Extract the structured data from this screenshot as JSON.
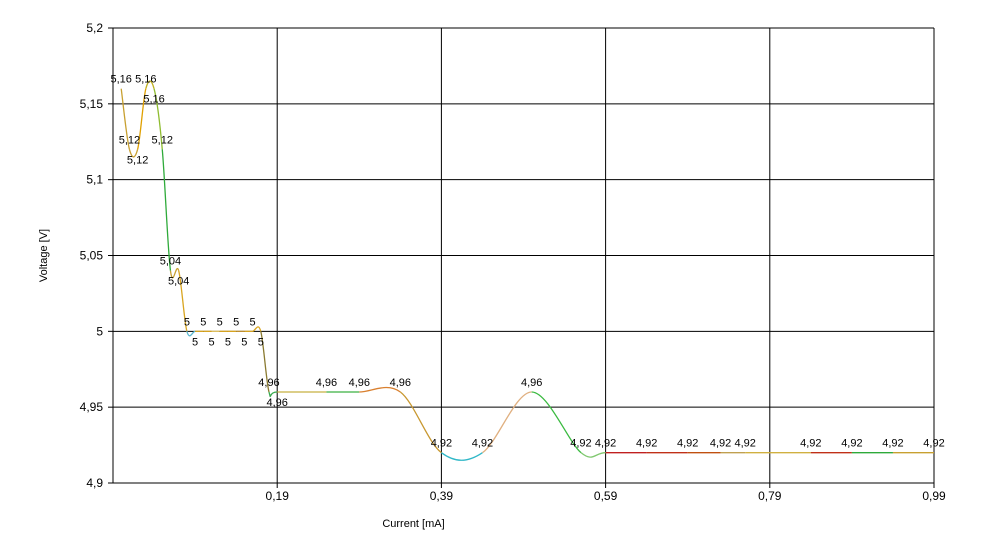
{
  "chart_data": {
    "type": "line",
    "xlabel": "Current [mA]",
    "ylabel": "Voltage [V]",
    "xlim": [
      -0.01,
      0.99
    ],
    "ylim": [
      4.9,
      5.2
    ],
    "x_ticks": [
      "0,19",
      "0,39",
      "0,59",
      "0,79",
      "0,99"
    ],
    "y_ticks": [
      "4,9",
      "4,95",
      "5",
      "5,05",
      "5,1",
      "5,15",
      "5,2"
    ],
    "grid": true,
    "points": [
      {
        "x": 0.0,
        "y": 5.16,
        "label": "5,16",
        "color": "#d9a520"
      },
      {
        "x": 0.01,
        "y": 5.12,
        "label": "5,12",
        "color": "#c8a030"
      },
      {
        "x": 0.02,
        "y": 5.12,
        "label": "5,12",
        "color": "#c8a030"
      },
      {
        "x": 0.03,
        "y": 5.16,
        "label": "5,16",
        "color": "#e0a000"
      },
      {
        "x": 0.04,
        "y": 5.16,
        "label": "5,16",
        "color": "#c0b020"
      },
      {
        "x": 0.05,
        "y": 5.12,
        "label": "5,12",
        "color": "#8fbc30"
      },
      {
        "x": 0.06,
        "y": 5.04,
        "label": "5,04",
        "color": "#2eaa3a"
      },
      {
        "x": 0.07,
        "y": 5.04,
        "label": "5,04",
        "color": "#c8a030"
      },
      {
        "x": 0.08,
        "y": 5.0,
        "label": "5",
        "color": "#d9a520"
      },
      {
        "x": 0.09,
        "y": 5.0,
        "label": "5",
        "color": "#5bb8d0"
      },
      {
        "x": 0.1,
        "y": 5.0,
        "label": "5",
        "color": "#d9a520"
      },
      {
        "x": 0.11,
        "y": 5.0,
        "label": "5",
        "color": "#d9a520"
      },
      {
        "x": 0.12,
        "y": 5.0,
        "label": "5",
        "color": "#e0c060"
      },
      {
        "x": 0.13,
        "y": 5.0,
        "label": "5",
        "color": "#d9a520"
      },
      {
        "x": 0.14,
        "y": 5.0,
        "label": "5",
        "color": "#d9a520"
      },
      {
        "x": 0.15,
        "y": 5.0,
        "label": "5",
        "color": "#c09030"
      },
      {
        "x": 0.16,
        "y": 5.0,
        "label": "5",
        "color": "#d9a520"
      },
      {
        "x": 0.17,
        "y": 5.0,
        "label": "5",
        "color": "#d9a520"
      },
      {
        "x": 0.18,
        "y": 4.96,
        "label": "4,96",
        "color": "#8a7a30"
      },
      {
        "x": 0.19,
        "y": 4.96,
        "label": "4,96",
        "color": "#3aaa50"
      },
      {
        "x": 0.25,
        "y": 4.96,
        "label": "4,96",
        "color": "#c8b040"
      },
      {
        "x": 0.29,
        "y": 4.96,
        "label": "4,96",
        "color": "#3ab040"
      },
      {
        "x": 0.34,
        "y": 4.96,
        "label": "4,96",
        "color": "#d98030"
      },
      {
        "x": 0.39,
        "y": 4.92,
        "label": "4,92",
        "color": "#c89830"
      },
      {
        "x": 0.44,
        "y": 4.92,
        "label": "4,92",
        "color": "#30b8c8"
      },
      {
        "x": 0.5,
        "y": 4.96,
        "label": "4,96",
        "color": "#e0b080"
      },
      {
        "x": 0.56,
        "y": 4.92,
        "label": "4,92",
        "color": "#3aba40"
      },
      {
        "x": 0.59,
        "y": 4.92,
        "label": "4,92",
        "color": "#80c870"
      },
      {
        "x": 0.64,
        "y": 4.92,
        "label": "4,92",
        "color": "#c02020"
      },
      {
        "x": 0.69,
        "y": 4.92,
        "label": "4,92",
        "color": "#c03018"
      },
      {
        "x": 0.73,
        "y": 4.92,
        "label": "4,92",
        "color": "#c05010"
      },
      {
        "x": 0.76,
        "y": 4.92,
        "label": "4,92",
        "color": "#c0a050"
      },
      {
        "x": 0.84,
        "y": 4.92,
        "label": "4,92",
        "color": "#d0b040"
      },
      {
        "x": 0.89,
        "y": 4.92,
        "label": "4,92",
        "color": "#c03018"
      },
      {
        "x": 0.94,
        "y": 4.92,
        "label": "4,92",
        "color": "#2eaa3a"
      },
      {
        "x": 0.99,
        "y": 4.92,
        "label": "4,92",
        "color": "#c8a030"
      }
    ]
  }
}
